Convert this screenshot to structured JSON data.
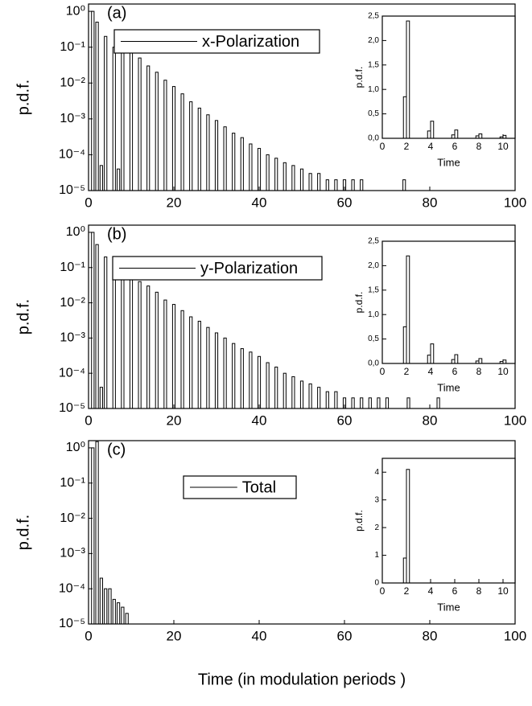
{
  "chart_data": [
    {
      "type": "bar",
      "annotation": "(a)",
      "ylabel": "p.d.f.",
      "log_y": true,
      "xlim": [
        0,
        100
      ],
      "xticks": [
        0,
        20,
        40,
        60,
        80,
        100
      ],
      "ylim": [
        1e-05,
        1.6
      ],
      "yticks": [
        {
          "value": 1,
          "label": "10⁰"
        },
        {
          "value": 0.1,
          "label": "10⁻¹"
        },
        {
          "value": 0.01,
          "label": "10⁻²"
        },
        {
          "value": 0.001,
          "label": "10⁻³"
        },
        {
          "value": 0.0001,
          "label": "10⁻⁴"
        },
        {
          "value": 1e-05,
          "label": "10⁻⁵"
        }
      ],
      "x": [
        1,
        2,
        3,
        4,
        6,
        7,
        8,
        10,
        12,
        14,
        16,
        18,
        20,
        22,
        24,
        26,
        28,
        30,
        32,
        34,
        36,
        38,
        40,
        42,
        44,
        46,
        48,
        50,
        52,
        54,
        56,
        58,
        60,
        62,
        64,
        74
      ],
      "series": [
        {
          "name": "x-Polarization",
          "color": "#000000",
          "values": [
            1.0,
            0.5,
            5e-05,
            0.2,
            0.1,
            4e-05,
            0.09,
            0.07,
            0.05,
            0.03,
            0.02,
            0.012,
            0.008,
            0.005,
            0.003,
            0.002,
            0.0013,
            0.0009,
            0.0006,
            0.0004,
            0.0003,
            0.0002,
            0.00015,
            0.0001,
            8e-05,
            6e-05,
            5e-05,
            4e-05,
            3e-05,
            3e-05,
            2e-05,
            2e-05,
            2e-05,
            2e-05,
            2e-05,
            2e-05
          ]
        }
      ]
    },
    {
      "type": "bar",
      "xlabel": "Time",
      "ylabel": "p.d.f.",
      "xlim": [
        0,
        11
      ],
      "xticks": [
        0,
        2,
        4,
        6,
        8,
        10
      ],
      "ylim": [
        0,
        2.5
      ],
      "yticks": [
        {
          "value": 0,
          "label": "0,0"
        },
        {
          "value": 0.5,
          "label": "0,5"
        },
        {
          "value": 1,
          "label": "1,0"
        },
        {
          "value": 1.5,
          "label": "1,5"
        },
        {
          "value": 2,
          "label": "2,0"
        },
        {
          "value": 2.5,
          "label": "2,5"
        }
      ],
      "x": [
        1.875,
        2.125,
        3.875,
        4.125,
        5.875,
        6.125,
        7.875,
        8.125,
        9.875,
        10.125
      ],
      "color": "#000000",
      "values": [
        0.85,
        2.4,
        0.15,
        0.35,
        0.07,
        0.17,
        0.05,
        0.09,
        0.03,
        0.06
      ]
    },
    {
      "type": "bar",
      "annotation": "(b)",
      "ylabel": "p.d.f.",
      "log_y": true,
      "xlim": [
        0,
        100
      ],
      "xticks": [
        0,
        20,
        40,
        60,
        80,
        100
      ],
      "ylim": [
        1e-05,
        1.6
      ],
      "yticks": [
        {
          "value": 1,
          "label": "10⁰"
        },
        {
          "value": 0.1,
          "label": "10⁻¹"
        },
        {
          "value": 0.01,
          "label": "10⁻²"
        },
        {
          "value": 0.001,
          "label": "10⁻³"
        },
        {
          "value": 0.0001,
          "label": "10⁻⁴"
        },
        {
          "value": 1e-05,
          "label": "10⁻⁵"
        }
      ],
      "x": [
        1,
        2,
        3,
        4,
        6,
        8,
        10,
        12,
        14,
        16,
        18,
        20,
        22,
        24,
        26,
        28,
        30,
        32,
        34,
        36,
        38,
        40,
        42,
        44,
        46,
        48,
        50,
        52,
        54,
        56,
        58,
        60,
        62,
        64,
        66,
        68,
        70,
        75,
        82
      ],
      "series": [
        {
          "name": "y-Polarization",
          "color": "#000000",
          "values": [
            1.0,
            0.45,
            4e-05,
            0.2,
            0.1,
            0.08,
            0.06,
            0.04,
            0.03,
            0.02,
            0.012,
            0.009,
            0.006,
            0.004,
            0.003,
            0.002,
            0.0014,
            0.001,
            0.0007,
            0.0005,
            0.0004,
            0.0003,
            0.0002,
            0.00015,
            0.0001,
            8e-05,
            6e-05,
            5e-05,
            4e-05,
            3e-05,
            3e-05,
            2e-05,
            2e-05,
            2e-05,
            2e-05,
            2e-05,
            2e-05,
            2e-05,
            2e-05
          ]
        }
      ]
    },
    {
      "type": "bar",
      "xlabel": "Time",
      "ylabel": "p.d.f.",
      "xlim": [
        0,
        11
      ],
      "xticks": [
        0,
        2,
        4,
        6,
        8,
        10
      ],
      "ylim": [
        0,
        2.5
      ],
      "yticks": [
        {
          "value": 0,
          "label": "0,0"
        },
        {
          "value": 0.5,
          "label": "0,5"
        },
        {
          "value": 1,
          "label": "1,0"
        },
        {
          "value": 1.5,
          "label": "1,5"
        },
        {
          "value": 2,
          "label": "2,0"
        },
        {
          "value": 2.5,
          "label": "2,5"
        }
      ],
      "x": [
        1.875,
        2.125,
        3.875,
        4.125,
        5.875,
        6.125,
        7.875,
        8.125,
        9.875,
        10.125
      ],
      "color": "#000000",
      "values": [
        0.75,
        2.2,
        0.17,
        0.4,
        0.08,
        0.18,
        0.05,
        0.1,
        0.04,
        0.07
      ]
    },
    {
      "type": "bar",
      "annotation": "(c)",
      "ylabel": "p.d.f.",
      "xlabel": "Time (in modulation periods )",
      "log_y": true,
      "xlim": [
        0,
        100
      ],
      "xticks": [
        0,
        20,
        40,
        60,
        80,
        100
      ],
      "ylim": [
        1e-05,
        1.6
      ],
      "yticks": [
        {
          "value": 1,
          "label": "10⁰"
        },
        {
          "value": 0.1,
          "label": "10⁻¹"
        },
        {
          "value": 0.01,
          "label": "10⁻²"
        },
        {
          "value": 0.001,
          "label": "10⁻³"
        },
        {
          "value": 0.0001,
          "label": "10⁻⁴"
        },
        {
          "value": 1e-05,
          "label": "10⁻⁵"
        }
      ],
      "x": [
        1,
        2,
        3,
        4,
        5,
        6,
        7,
        8,
        9
      ],
      "series": [
        {
          "name": "Total",
          "color": "#000000",
          "values": [
            1.0,
            1.5,
            0.0002,
            0.0001,
            0.0001,
            5e-05,
            4e-05,
            3e-05,
            2e-05
          ]
        }
      ]
    },
    {
      "type": "bar",
      "xlabel": "Time",
      "ylabel": "p.d.f.",
      "xlim": [
        0,
        11
      ],
      "xticks": [
        0,
        2,
        4,
        6,
        8,
        10
      ],
      "ylim": [
        0,
        4.5
      ],
      "yticks": [
        0,
        1,
        2,
        3,
        4
      ],
      "x": [
        1.875,
        2.125
      ],
      "color": "#000000",
      "values": [
        0.9,
        4.1
      ]
    }
  ]
}
